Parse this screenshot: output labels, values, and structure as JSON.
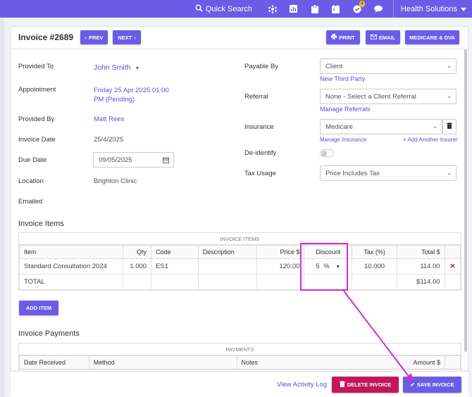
{
  "topbar": {
    "search_label": "Quick Search",
    "notification_count": "4",
    "org_name": "Health Solutions"
  },
  "header": {
    "title": "Invoice #2689",
    "prev_label": "PREV",
    "next_label": "NEXT",
    "print_label": "PRINT",
    "email_label": "EMAIL",
    "medicare_label": "MEDICARE & DVA"
  },
  "form": {
    "provided_to_label": "Provided To",
    "provided_to_value": "John Smith",
    "appointment_label": "Appointment",
    "appointment_line1": "Friday 25 Apr 2025 01:00",
    "appointment_line2": "PM (Pending)",
    "provided_by_label": "Provided By",
    "provided_by_value": "Matt Rees",
    "invoice_date_label": "Invoice Date",
    "invoice_date_value": "25/4/2025",
    "due_date_label": "Due Date",
    "due_date_value": "09/05/2025",
    "location_label": "Location",
    "location_value": "Brighton Clinic",
    "emailed_label": "Emailed",
    "payable_by_label": "Payable By",
    "payable_by_value": "Client",
    "new_third_party": "New Third Party",
    "referral_label": "Referral",
    "referral_value": "None - Select a Client Referral",
    "manage_referrals": "Manage Referrals",
    "insurance_label": "Insurance",
    "insurance_value": "Medicare",
    "manage_insurance": "Manage Insurance",
    "add_insurer": "+ Add Another Insurer",
    "deidentify_label": "De-identify",
    "tax_usage_label": "Tax Usage",
    "tax_usage_value": "Price Includes Tax"
  },
  "items": {
    "section_title": "Invoice Items",
    "caption": "INVOICE ITEMS",
    "columns": [
      "Item",
      "Qty",
      "Code",
      "Description",
      "Price $",
      "Discount",
      "Tax (%)",
      "Total $"
    ],
    "rows": [
      {
        "item": "Standard Consultation 2024",
        "qty": "1.000",
        "code": "ES1",
        "description": "",
        "price": "120.00",
        "discount": "5",
        "discount_unit": "%",
        "tax": "10.000",
        "total": "114.00"
      }
    ],
    "total_label": "TOTAL",
    "total_value": "$114.00",
    "add_item_label": "ADD ITEM"
  },
  "payments": {
    "section_title": "Invoice Payments",
    "caption": "PAYMENTS",
    "columns": [
      "Date Received",
      "Method",
      "Notes",
      "Amount $"
    ]
  },
  "footer": {
    "view_activity_log": "View Activity Log",
    "delete_label": "DELETE INVOICE",
    "save_label": "SAVE INVOICE"
  },
  "colors": {
    "brand": "#6b5ce7",
    "annotation": "#c930d6",
    "delete": "#c2185b"
  }
}
